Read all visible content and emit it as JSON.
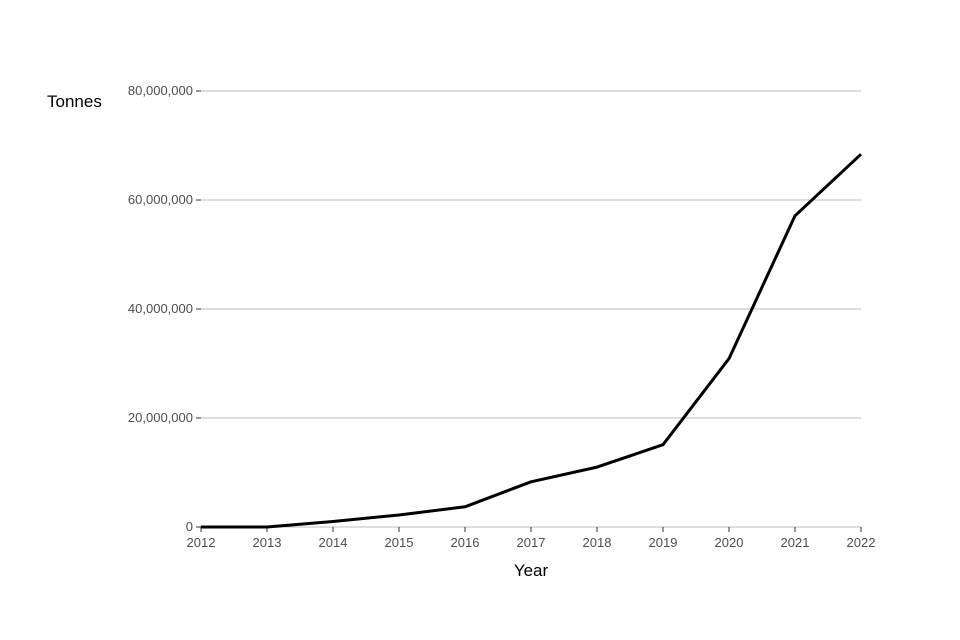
{
  "chart_data": {
    "type": "line",
    "title": "",
    "xlabel": "Year",
    "ylabel": "Tonnes",
    "x": [
      2012,
      2013,
      2014,
      2015,
      2016,
      2017,
      2018,
      2019,
      2020,
      2021,
      2022
    ],
    "values": [
      0,
      0,
      1000000,
      2200000,
      3700000,
      8300000,
      11000000,
      15100000,
      30900000,
      57100000,
      68400000
    ],
    "xlim": [
      2012,
      2022
    ],
    "ylim": [
      0,
      80000000
    ],
    "xticks": [
      "2012",
      "2013",
      "2014",
      "2015",
      "2016",
      "2017",
      "2018",
      "2019",
      "2020",
      "2021",
      "2022"
    ],
    "yticks": [
      0,
      20000000,
      40000000,
      60000000,
      80000000
    ],
    "ytick_labels": [
      "0",
      "20,000,000",
      "40,000,000",
      "60,000,000",
      "80,000,000"
    ],
    "grid": "horizontal major",
    "line_color": "#000000",
    "grid_color": "#bebebe"
  }
}
